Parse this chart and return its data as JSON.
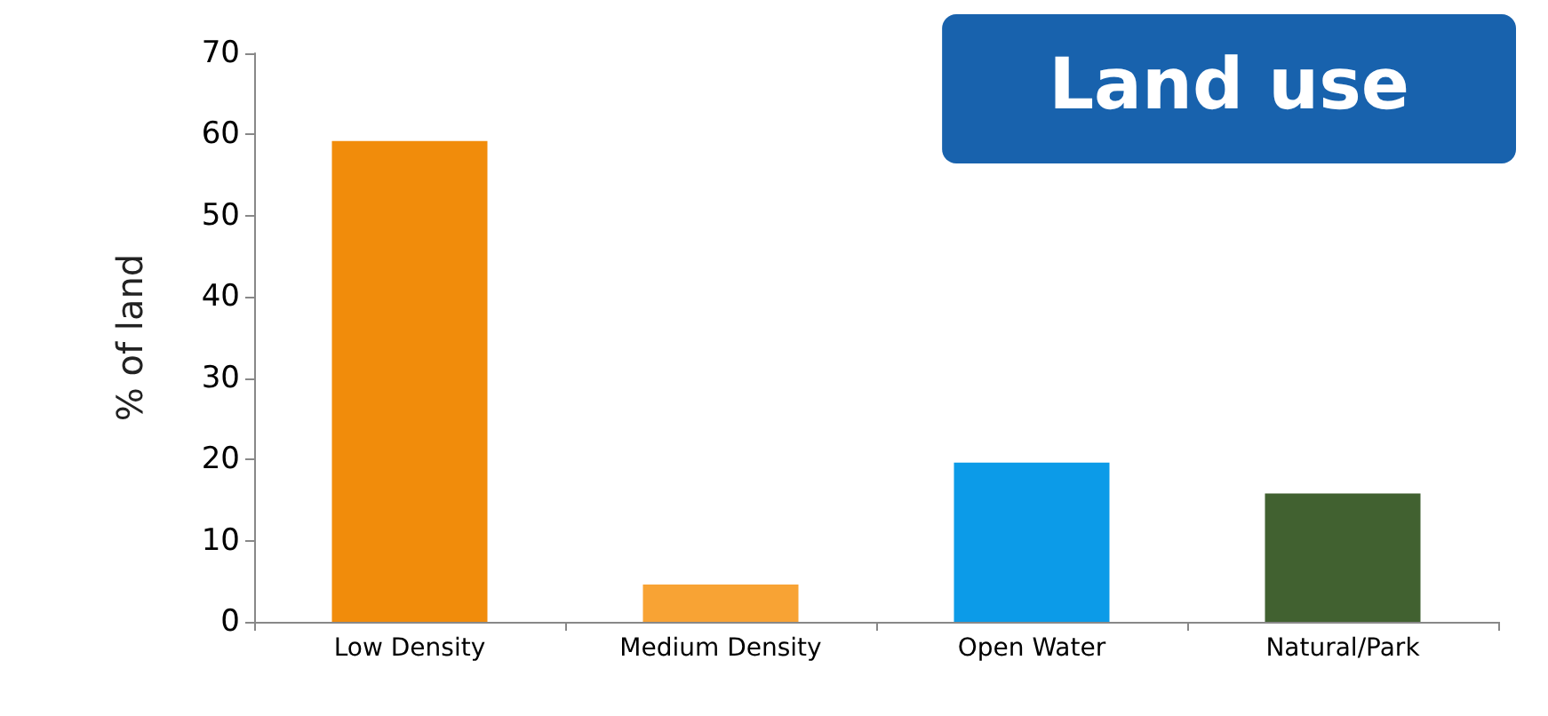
{
  "chart_data": {
    "type": "bar",
    "title": "Land use",
    "ylabel": "% of land",
    "categories": [
      "Low Density",
      "Medium Density",
      "Open Water",
      "Natural/Park"
    ],
    "values": [
      59.2,
      4.6,
      19.6,
      15.8
    ],
    "colors": [
      "#f18c0b",
      "#f8a334",
      "#0c9be8",
      "#416130"
    ],
    "ylim": [
      0,
      70
    ],
    "yticks": [
      0,
      10,
      20,
      30,
      40,
      50,
      60,
      70
    ],
    "grid": false
  }
}
